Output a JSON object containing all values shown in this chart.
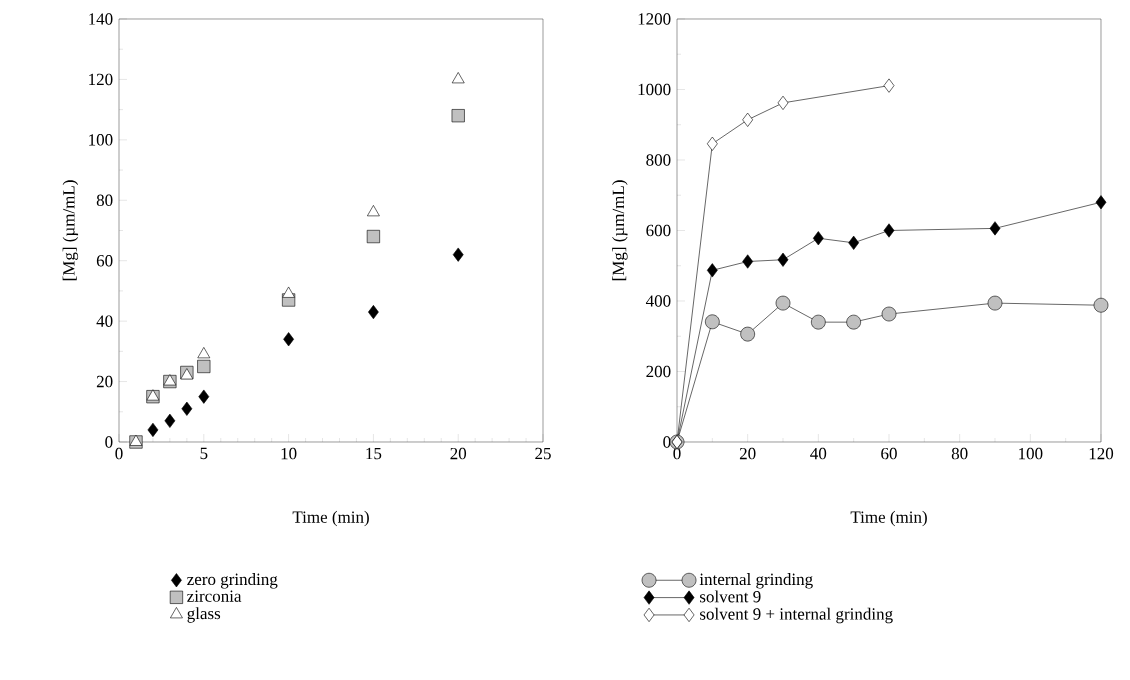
{
  "chart_data": [
    {
      "type": "scatter",
      "xlabel": "Time (min)",
      "ylabel": "[Mg] (µm/mL)",
      "xlim": [
        0,
        25
      ],
      "ylim": [
        0,
        140
      ],
      "xticks": [
        0,
        5,
        10,
        15,
        20,
        25
      ],
      "yticks": [
        0,
        20,
        40,
        60,
        80,
        100,
        120,
        140
      ],
      "legend": "bottom",
      "series": [
        {
          "name": "zero grinding",
          "color": "#000000",
          "marker": "diamond",
          "x": [
            2,
            3,
            4,
            5,
            10,
            15,
            20
          ],
          "values": [
            4,
            7,
            11,
            15,
            34,
            43,
            62
          ]
        },
        {
          "name": "zirconia",
          "color": "#c0c0c0",
          "marker": "square",
          "x": [
            1,
            2,
            3,
            4,
            5,
            10,
            15,
            20
          ],
          "values": [
            0,
            15,
            20,
            23,
            25,
            47,
            68,
            108
          ]
        },
        {
          "name": "glass",
          "color": "#ffffff",
          "marker": "triangle",
          "x": [
            1,
            2,
            3,
            4,
            5,
            10,
            15,
            20
          ],
          "values": [
            0,
            15,
            20,
            22,
            29,
            49,
            76,
            120
          ]
        }
      ]
    },
    {
      "type": "line",
      "xlabel": "Time (min)",
      "ylabel": "[Mg] (µm/mL)",
      "xlim": [
        0,
        120
      ],
      "ylim": [
        0,
        1200
      ],
      "xticks": [
        0,
        20,
        40,
        60,
        80,
        100,
        120
      ],
      "yticks": [
        0,
        200,
        400,
        600,
        800,
        1000,
        1200
      ],
      "legend": "bottom",
      "line_style": "solid",
      "series": [
        {
          "name": "internal grinding",
          "color": "#c0c0c0",
          "marker": "circle",
          "x": [
            0,
            10,
            20,
            30,
            40,
            50,
            60,
            90,
            120
          ],
          "values": [
            0,
            341,
            306,
            394,
            340,
            340,
            363,
            394,
            388
          ]
        },
        {
          "name": "solvent 9",
          "color": "#000000",
          "marker": "diamond",
          "x": [
            0,
            10,
            20,
            30,
            40,
            50,
            60,
            90,
            120
          ],
          "values": [
            0,
            487,
            512,
            517,
            578,
            565,
            600,
            606,
            680
          ]
        },
        {
          "name": "solvent 9 + internal grinding",
          "color": "#ffffff",
          "marker": "diamond",
          "x": [
            0,
            10,
            20,
            30,
            60
          ],
          "values": [
            0,
            846,
            914,
            962,
            1011
          ]
        }
      ]
    }
  ]
}
